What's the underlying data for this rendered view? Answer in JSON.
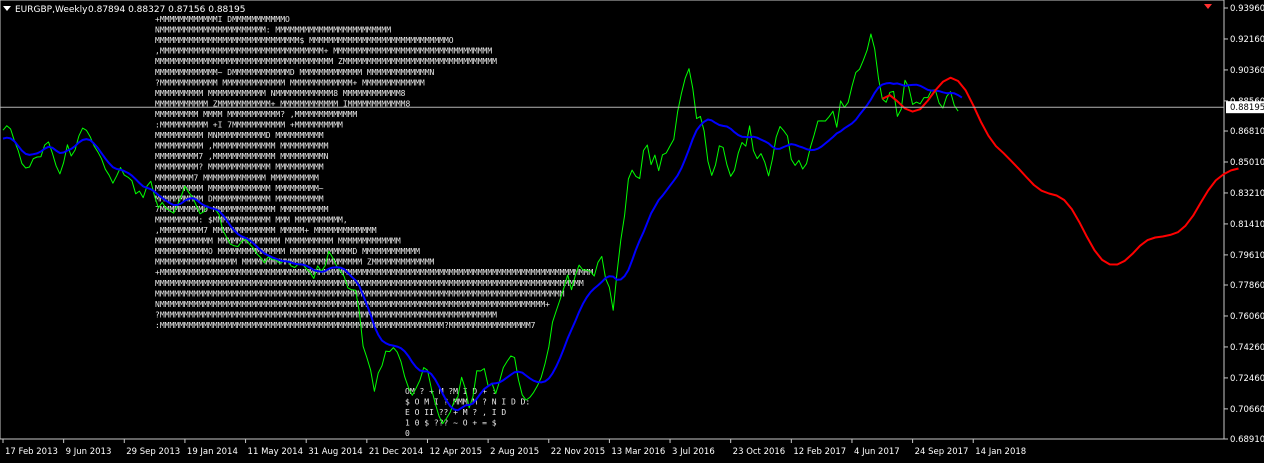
{
  "header": {
    "symbol": "EURGBP,Weekly",
    "ohlc": "0.87894 0.88327 0.87156 0.88195"
  },
  "price_label": "0.88195",
  "ascii_art": [
    "                                     +MMMMMMMMMMMMI                                               DMMMMMMMMMMMO",
    "                                   NMMMMMMMMMMMMMMMMMMMMMM:                                     MMMMMMMMMMMMMMMMMMMMMMMM",
    "                                 MMMMMMMMMMMMMMMMMMMMMMMMMMMMMM$                              MMMMMMMMMMMMMMMMMMMMMMMMMMMMMO",
    "                              ,MMMMMMMMMMMMMMMMMMMMMMMMMMMMMMMMMM+                         MMMMMMMMMMMMMMMMMMMMMMMMMMMMMMMMM",
    "                               MMMMMMMMMMMMMMMMMMMMMMMMMMMMMMMMMMMMM                      ZMMMMMMMMMMMMMMMMMMMMMMMMMMMMMMMM",
    "                             MMMMMMMMMMMMM~              DMMMMMMMMMMMMD                  MMMMMMMMMMMMM         MMMMMMMMMMMMMN",
    "                           ?MMMMMMMMMMMM                   MMMMMMMMMMMMM               MMMMMMMMMMMMM+            MMMMMMMMMMMMM",
    "                           MMMMMMMMMM                       MMMMMMMMMMMM             NMMMMMMMMMMMM8              MMMMMMMMMMMM8",
    "                         MMMMMMMMMMM                          ZMMMMMMMMMMM+          MMMMMMMMMMMM              IMMMMMMMMMMMM8",
    "                         MMMMMMMMM                              MMMM                 MMMMMMMMMMM?              ,MMMMMMMMMMMMM",
    "                        :MMMMMMMMMM                                 +I               7MMMMMMMMMMM                  +MMMMMMMMMM",
    "                        MMMMMMMMMM                                                 MNMMMMMMMMMMD                     MMMMMMMMMM",
    "                        MMMMMMMMMM                                               ,MMMMMMMMMMMMM                      MMMMMMMMMM",
    "                        MMMMMMMMM7                                              ,MMMMMMMMMMMMM                         MMMMMMMMMN",
    "                        MMMMMMMMM?                                             MMMMMMMMMMMMM                          MMMMMMMMMM",
    "                        MMMMMMMM7                                              MMMMMMMMMMMMM                          MMMMMMMMMM",
    "                        MMMMMMMMMM                                             MMMMMMMMMMMMM                          MMMMMMMMM~",
    "                        MMMMMMMMMM                                            DMMMMMMMMMMMM                          MMMMMMMMMM",
    "                        7MMMMMMMMMD                                          MMMMMMMMMMMMM                           MMMMMMMMMM",
    "                        MMMMMMMMM:                                          $MMMMMMMMMMMM      MMM                  MMMMMMMMMM,",
    "                        ,MMMMMMMMM7                                        MMMMMMMMMMMMM       MMMMM+            MMMMMMMMMMMMM",
    "                        MMMMMMMMMMMM                                       MMMMMMMMMMMMM       MMMMMMMMMM      MMMMMMMMMMMMM",
    "                        MMMMMMMMMMMO                                       MMMMMMMMMMMMMM     MMMMMMMMMMMMMD    MMMMMMMMMMMM",
    "                         MMMMMMMMMMMMMMMMM                              MMMMMMMMMMMMMMMMMMMMMMMMM   ZMMMMMMMMMMMMM",
    "                         +MMMMMMMMMMMMMMMMMMMMMMMMMMMMMMMMMMMMMMMMMMMMMMMMMMMMMMMMMMMMMMMMMMMMMMMMMMMMMMMMMMMMMMMMMM",
    "                           MMMMMMMMMMMMMMMMMMMMMMMMMMMMMMMMMMMMMMMMMMMMMMMMMMMMMMMMMMMMMMMMMMMMMMMMMMMMMMMMMMMMMMMMM",
    "                             MMMMMMMMMMMMMMMMMMMMMMMMMMMMMMMMMMMMMMMMMMMMMMMMMMMMMMMMMMMMMMMMMMMMMMMMMMMMMMMMMMMMM",
    "                              NMMMMMMMMMMMMMMMMMMMMMMMMMMMMMMMMMMMMMMMMMMMMMMMMMMMMMMMMMMMMMMMMMMMMMMMMMMMMMMMM+",
    "                                ?MMMMMMMMMMMMMMMMMMMMMMMMMMMMMMMMMMMMMMMMMMMMMMMMMMMMMMMMMMMMMMMMMMMMMM",
    "                                  :MMMMMMMMMMMMMMMMMMMMMMMMMMMMMMMMMMMMMMMMMMMMMMMMMMMMMMMMMMM?MMMMMMMMMMMMMMMMM7"
  ],
  "ascii_bottom": [
    "OM     ?                     +                  M              ?M              I                D              +   :",
    "$     O M  I   ?                    MMM          M       ? N          I              D          D:",
    "E      O  II   ??                  +            M         ?   ,          I          D",
    "1      0    $  ???               ~              O        +           =           $",
    "0"
  ],
  "chart_data": {
    "type": "line",
    "title": "EURGBP,Weekly",
    "ylim": [
      0.6891,
      0.9396
    ],
    "y_ticks": [
      0.9396,
      0.9216,
      0.9036,
      0.8856,
      0.8681,
      0.8501,
      0.8321,
      0.8141,
      0.7961,
      0.7786,
      0.7606,
      0.7426,
      0.7246,
      0.7066,
      0.6891
    ],
    "y_tick_labels": [
      "0.93960",
      "0.92160",
      "0.90360",
      "0.88560",
      "0.86810",
      "0.85010",
      "0.83210",
      "0.81410",
      "0.79610",
      "0.77860",
      "0.76060",
      "0.74260",
      "0.72460",
      "0.70660",
      "0.68910"
    ],
    "x_tick_labels": [
      "17 Feb 2013",
      "9 Jun 2013",
      "29 Sep 2013",
      "19 Jan 2014",
      "11 May 2014",
      "31 Aug 2014",
      "21 Dec 2014",
      "12 Apr 2015",
      "2 Aug 2015",
      "22 Nov 2015",
      "13 Mar 2016",
      "3 Jul 2016",
      "23 Oct 2016",
      "12 Feb 2017",
      "4 Jun 2017",
      "24 Sep 2017",
      "14 Jan 2018"
    ],
    "x_tick_index": [
      0,
      16,
      32,
      48,
      64,
      80,
      96,
      112,
      128,
      144,
      160,
      176,
      192,
      208,
      224,
      240,
      256
    ],
    "current_price": 0.88195,
    "series": [
      {
        "color": "#00ff00",
        "role": "price",
        "values": [
          0.8686,
          0.8712,
          0.8693,
          0.8624,
          0.8567,
          0.8492,
          0.8466,
          0.8472,
          0.852,
          0.853,
          0.8532,
          0.86,
          0.8618,
          0.8554,
          0.8479,
          0.8432,
          0.8497,
          0.8601,
          0.8536,
          0.857,
          0.8651,
          0.8698,
          0.8685,
          0.8648,
          0.8595,
          0.856,
          0.852,
          0.8459,
          0.8424,
          0.8378,
          0.8421,
          0.8469,
          0.8425,
          0.8412,
          0.8392,
          0.8316,
          0.8332,
          0.8294,
          0.8361,
          0.8389,
          0.8302,
          0.8235,
          0.8266,
          0.8232,
          0.8218,
          0.8204,
          0.8249,
          0.8299,
          0.836,
          0.8325,
          0.8297,
          0.8248,
          0.82,
          0.8212,
          0.8245,
          0.8229,
          0.8226,
          0.8195,
          0.8106,
          0.8064,
          0.8024,
          0.8014,
          0.801,
          0.804,
          0.8052,
          0.8025,
          0.8002,
          0.7967,
          0.7946,
          0.7915,
          0.795,
          0.7934,
          0.7932,
          0.7913,
          0.7924,
          0.7929,
          0.7897,
          0.7888,
          0.791,
          0.7908,
          0.7882,
          0.786,
          0.7824,
          0.7897,
          0.7867,
          0.7898,
          0.7982,
          0.7944,
          0.7898,
          0.787,
          0.7836,
          0.7769,
          0.7758,
          0.7756,
          0.7632,
          0.743,
          0.7365,
          0.7292,
          0.7168,
          0.7274,
          0.7317,
          0.7402,
          0.7399,
          0.7422,
          0.7396,
          0.7342,
          0.7253,
          0.7189,
          0.7145,
          0.7186,
          0.7233,
          0.7306,
          0.7291,
          0.7186,
          0.7101,
          0.7025,
          0.698,
          0.701,
          0.7046,
          0.7108,
          0.7135,
          0.725,
          0.7182,
          0.7072,
          0.7139,
          0.7288,
          0.7286,
          0.73,
          0.72,
          0.7216,
          0.7155,
          0.7226,
          0.7306,
          0.7342,
          0.7374,
          0.7364,
          0.7237,
          0.7148,
          0.7117,
          0.7133,
          0.7162,
          0.72,
          0.7249,
          0.7328,
          0.7426,
          0.757,
          0.7637,
          0.7702,
          0.777,
          0.7845,
          0.7759,
          0.7841,
          0.7902,
          0.7873,
          0.7874,
          0.7864,
          0.7838,
          0.7918,
          0.7952,
          0.7823,
          0.7772,
          0.7639,
          0.7857,
          0.8047,
          0.8191,
          0.8402,
          0.8454,
          0.8417,
          0.8405,
          0.8568,
          0.86,
          0.8486,
          0.8541,
          0.8451,
          0.8543,
          0.8554,
          0.8594,
          0.8633,
          0.8792,
          0.8899,
          0.8988,
          0.9043,
          0.8928,
          0.8753,
          0.8766,
          0.8681,
          0.8506,
          0.8423,
          0.8484,
          0.8595,
          0.8586,
          0.8485,
          0.8418,
          0.8453,
          0.8554,
          0.8614,
          0.8593,
          0.8711,
          0.8567,
          0.852,
          0.855,
          0.85,
          0.842,
          0.8517,
          0.8646,
          0.8707,
          0.8683,
          0.8652,
          0.8516,
          0.8481,
          0.8511,
          0.846,
          0.8491,
          0.8584,
          0.8658,
          0.8739,
          0.874,
          0.8739,
          0.8765,
          0.8796,
          0.8703,
          0.8856,
          0.8818,
          0.8848,
          0.8941,
          0.9021,
          0.904,
          0.9092,
          0.9151,
          0.9245,
          0.9158,
          0.8987,
          0.8867,
          0.8848,
          0.8906,
          0.8911,
          0.8766,
          0.8808,
          0.8976,
          0.8935,
          0.8836,
          0.8849,
          0.8839,
          0.8875,
          0.8875,
          0.8918,
          0.8921,
          0.8843,
          0.8814,
          0.8882,
          0.891,
          0.883,
          0.8797
        ]
      },
      {
        "color": "#0000ff",
        "role": "smoothed",
        "values": [
          0.8637,
          0.8642,
          0.8638,
          0.8621,
          0.8594,
          0.8567,
          0.8548,
          0.8542,
          0.8546,
          0.8551,
          0.8562,
          0.8578,
          0.8589,
          0.8584,
          0.8567,
          0.8553,
          0.8556,
          0.8568,
          0.8577,
          0.8593,
          0.8614,
          0.8629,
          0.8634,
          0.8628,
          0.8608,
          0.8583,
          0.8552,
          0.8521,
          0.8494,
          0.8471,
          0.846,
          0.8456,
          0.8448,
          0.8437,
          0.8422,
          0.8401,
          0.8379,
          0.8359,
          0.8351,
          0.8343,
          0.8329,
          0.8309,
          0.8292,
          0.8276,
          0.8262,
          0.8251,
          0.8251,
          0.826,
          0.8276,
          0.8287,
          0.8291,
          0.8282,
          0.8264,
          0.8249,
          0.824,
          0.8233,
          0.8227,
          0.8217,
          0.8193,
          0.8163,
          0.8131,
          0.8103,
          0.8082,
          0.8068,
          0.806,
          0.8047,
          0.803,
          0.8009,
          0.7988,
          0.7969,
          0.7958,
          0.7947,
          0.7939,
          0.793,
          0.7925,
          0.7923,
          0.7917,
          0.791,
          0.7907,
          0.7905,
          0.7898,
          0.7887,
          0.7872,
          0.7867,
          0.7863,
          0.7866,
          0.7881,
          0.7887,
          0.7889,
          0.7887,
          0.7878,
          0.7857,
          0.7834,
          0.7813,
          0.778,
          0.7727,
          0.7673,
          0.7614,
          0.7546,
          0.7498,
          0.7463,
          0.7448,
          0.7438,
          0.7434,
          0.7428,
          0.7419,
          0.74,
          0.7372,
          0.7337,
          0.7309,
          0.7289,
          0.7284,
          0.7284,
          0.7268,
          0.7238,
          0.7198,
          0.7155,
          0.7115,
          0.7082,
          0.7063,
          0.7058,
          0.7072,
          0.7086,
          0.7089,
          0.7098,
          0.7125,
          0.7155,
          0.7182,
          0.7198,
          0.7212,
          0.7215,
          0.722,
          0.7233,
          0.7249,
          0.7265,
          0.7279,
          0.7282,
          0.7277,
          0.726,
          0.7244,
          0.723,
          0.7222,
          0.722,
          0.7226,
          0.7242,
          0.7272,
          0.7313,
          0.7362,
          0.7417,
          0.7476,
          0.7527,
          0.7576,
          0.763,
          0.7676,
          0.7714,
          0.7744,
          0.7766,
          0.7784,
          0.7804,
          0.7827,
          0.7837,
          0.7835,
          0.7816,
          0.7818,
          0.7838,
          0.7873,
          0.7929,
          0.7991,
          0.8045,
          0.8093,
          0.8148,
          0.8202,
          0.8241,
          0.828,
          0.8305,
          0.8334,
          0.8363,
          0.8392,
          0.8423,
          0.8465,
          0.8518,
          0.8575,
          0.8635,
          0.8685,
          0.8714,
          0.8735,
          0.8748,
          0.8743,
          0.8728,
          0.8716,
          0.8711,
          0.8707,
          0.8694,
          0.8674,
          0.8657,
          0.8648,
          0.8646,
          0.8645,
          0.8648,
          0.8642,
          0.8631,
          0.8621,
          0.8609,
          0.8589,
          0.8577,
          0.8578,
          0.8588,
          0.8597,
          0.8605,
          0.8601,
          0.8592,
          0.8585,
          0.8576,
          0.857,
          0.8571,
          0.8578,
          0.8591,
          0.8609,
          0.8627,
          0.8646,
          0.8667,
          0.8679,
          0.8697,
          0.8711,
          0.8725,
          0.8746,
          0.8775,
          0.8803,
          0.8831,
          0.8864,
          0.8903,
          0.8934,
          0.8951,
          0.8958,
          0.896,
          0.8955,
          0.8958,
          0.8951,
          0.8943,
          0.8947,
          0.8949,
          0.895,
          0.8944,
          0.8932,
          0.892,
          0.8916,
          0.8916,
          0.8913,
          0.8906,
          0.8901,
          0.8902,
          0.89,
          0.889,
          0.8875
        ]
      },
      {
        "color": "#ff0000",
        "role": "projection",
        "x": [
          232,
          234,
          236,
          238,
          240,
          242,
          244,
          246,
          248,
          250,
          252,
          254,
          256,
          258,
          260,
          262,
          264,
          266,
          268,
          270,
          272,
          274,
          276,
          278,
          280,
          282,
          284,
          286,
          288,
          290,
          292,
          294,
          296,
          298,
          300,
          302,
          304,
          306,
          308,
          310,
          312,
          314,
          316,
          318,
          320,
          322,
          324,
          326
        ],
        "values": [
          0.8868,
          0.8889,
          0.8854,
          0.8812,
          0.8794,
          0.8808,
          0.8858,
          0.8917,
          0.8967,
          0.8991,
          0.8972,
          0.8917,
          0.8831,
          0.8736,
          0.8654,
          0.8593,
          0.8552,
          0.8508,
          0.8462,
          0.8414,
          0.8367,
          0.8334,
          0.8318,
          0.8306,
          0.828,
          0.8227,
          0.8151,
          0.8066,
          0.7988,
          0.7932,
          0.7906,
          0.7905,
          0.7927,
          0.7967,
          0.8014,
          0.8047,
          0.8062,
          0.8068,
          0.8077,
          0.8093,
          0.8131,
          0.8189,
          0.8263,
          0.8336,
          0.8394,
          0.8429,
          0.8452,
          0.8463
        ]
      }
    ]
  }
}
